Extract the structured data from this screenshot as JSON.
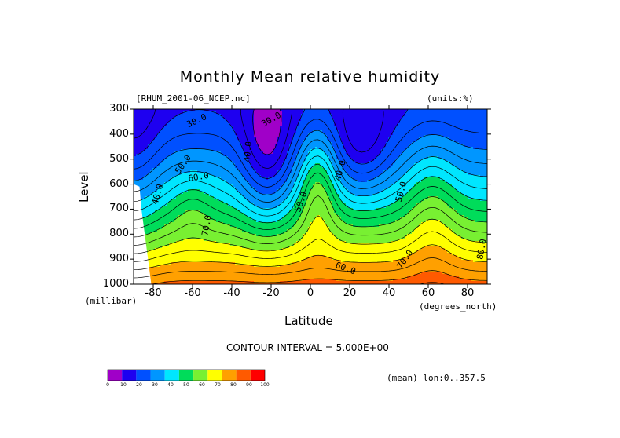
{
  "chart_data": {
    "type": "heatmap",
    "title": "Monthly Mean relative humidity",
    "file_label": "[RHUM_2001-06_NCEP.nc]",
    "units_label": "(units:%)",
    "xlabel": "Latitude",
    "ylabel": "Level",
    "x_units": "(degrees_north)",
    "y_units": "(millibar)",
    "xlim": [
      -90,
      90
    ],
    "ylim": [
      1000,
      300
    ],
    "x_ticks": [
      -80,
      -60,
      -40,
      -20,
      0,
      20,
      40,
      60,
      80
    ],
    "x_tick_labels": [
      "-80",
      "-60",
      "-40",
      "-20",
      "0",
      "20",
      "40",
      "60",
      "80"
    ],
    "y_ticks": [
      300,
      400,
      500,
      600,
      700,
      800,
      900,
      1000
    ],
    "y_tick_labels": [
      "300",
      "400",
      "500",
      "600",
      "700",
      "800",
      "900",
      "1000"
    ],
    "contour_interval_label": "CONTOUR INTERVAL = 5.000E+00",
    "contour_labels": [
      {
        "text": "30.0",
        "lat": -58,
        "lev": 345,
        "rot": -25
      },
      {
        "text": "30.0",
        "lat": -20,
        "lev": 340,
        "rot": -30
      },
      {
        "text": "40.0",
        "lat": -32,
        "lev": 470,
        "rot": -85
      },
      {
        "text": "50.0",
        "lat": -65,
        "lev": 520,
        "rot": -55
      },
      {
        "text": "60.0",
        "lat": -57,
        "lev": 570,
        "rot": -10
      },
      {
        "text": "40.0",
        "lat": -78,
        "lev": 640,
        "rot": -75
      },
      {
        "text": "70.0",
        "lat": -53,
        "lev": 765,
        "rot": -80
      },
      {
        "text": "50.0",
        "lat": -5,
        "lev": 670,
        "rot": -70
      },
      {
        "text": "40.0",
        "lat": 15,
        "lev": 545,
        "rot": -75
      },
      {
        "text": "50.0",
        "lat": 46,
        "lev": 630,
        "rot": -75
      },
      {
        "text": "60.0",
        "lat": 18,
        "lev": 935,
        "rot": 20
      },
      {
        "text": "70.0",
        "lat": 48,
        "lev": 900,
        "rot": -55
      },
      {
        "text": "80.0",
        "lat": 87,
        "lev": 860,
        "rot": -80
      }
    ],
    "colorbar": {
      "levels": [
        0,
        10,
        20,
        30,
        40,
        50,
        60,
        70,
        80,
        90,
        100
      ],
      "labels": [
        "0",
        "10",
        "20",
        "30",
        "40",
        "50",
        "60",
        "70",
        "80",
        "90",
        "100"
      ],
      "colors": [
        "#a000c8",
        "#1e00f0",
        "#0050ff",
        "#0096ff",
        "#00e6ff",
        "#00dc5a",
        "#78f032",
        "#ffff00",
        "#ffa000",
        "#ff5a00",
        "#ff0000"
      ]
    },
    "grid": false,
    "legend": "bottom-left colorbar"
  },
  "footer": {
    "mean_label": "(mean) lon:0..357.5"
  }
}
